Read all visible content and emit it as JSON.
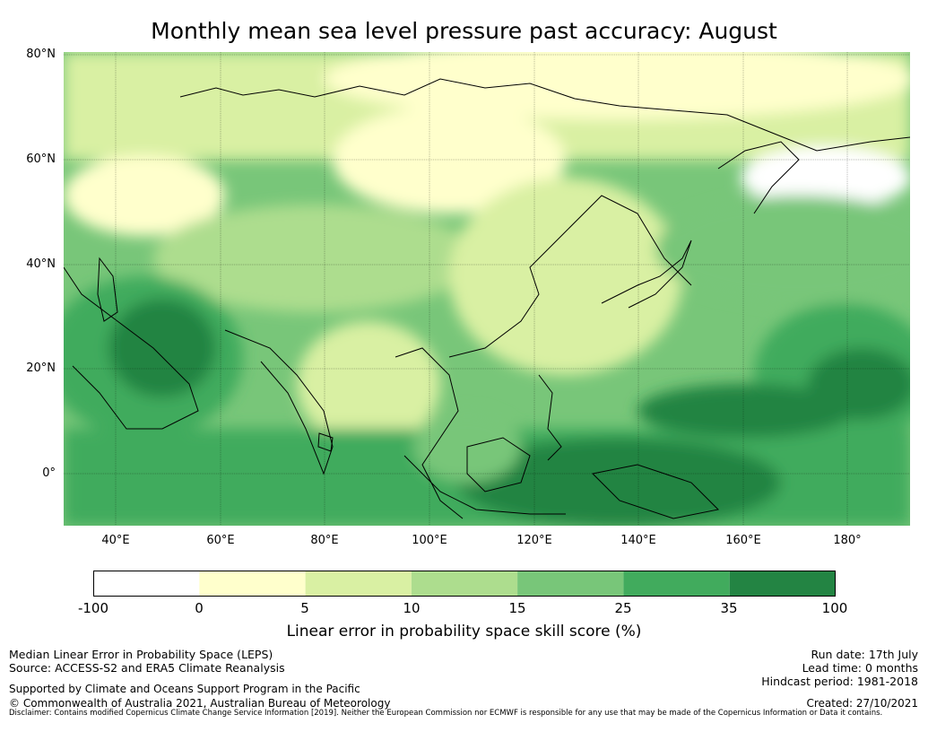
{
  "title": "Monthly mean sea level pressure past accuracy: August",
  "map": {
    "lat_ticks": [
      "80°N",
      "60°N",
      "40°N",
      "20°N",
      "0°"
    ],
    "lon_ticks": [
      "40°E",
      "60°E",
      "80°E",
      "100°E",
      "120°E",
      "140°E",
      "160°E",
      "180°"
    ],
    "extent": {
      "lon": [
        30,
        192
      ],
      "lat": [
        -10,
        81
      ]
    }
  },
  "colorbar": {
    "title": "Linear error in probability space skill score (%)",
    "ticks": [
      "-100",
      "0",
      "5",
      "10",
      "15",
      "25",
      "35",
      "100"
    ],
    "colors": [
      "#ffffff",
      "#ffffcc",
      "#d9f0a3",
      "#addd8e",
      "#78c679",
      "#41ab5d",
      "#238443"
    ]
  },
  "footer": {
    "left": {
      "line1": "Median Linear Error in Probability Space (LEPS)",
      "line2": "Source: ACCESS-S2 and ERA5 Climate Reanalysis",
      "line3": "Supported by Climate and Oceans Support Program in the Pacific",
      "line4": "© Commonwealth of Australia 2021, Australian Bureau of Meteorology"
    },
    "right": {
      "run_date": "Run date: 17th July",
      "lead_time": "Lead time: 0 months",
      "hindcast": "Hindcast period: 1981-2018",
      "created": "Created: 27/10/2021"
    },
    "disclaimer": "Disclaimer: Contains modified Copernicus Climate Change Service Information [2019]. Neither the European Commission nor ECMWF is responsible for any use that may be made of the Copernicus Information or Data it contains."
  }
}
